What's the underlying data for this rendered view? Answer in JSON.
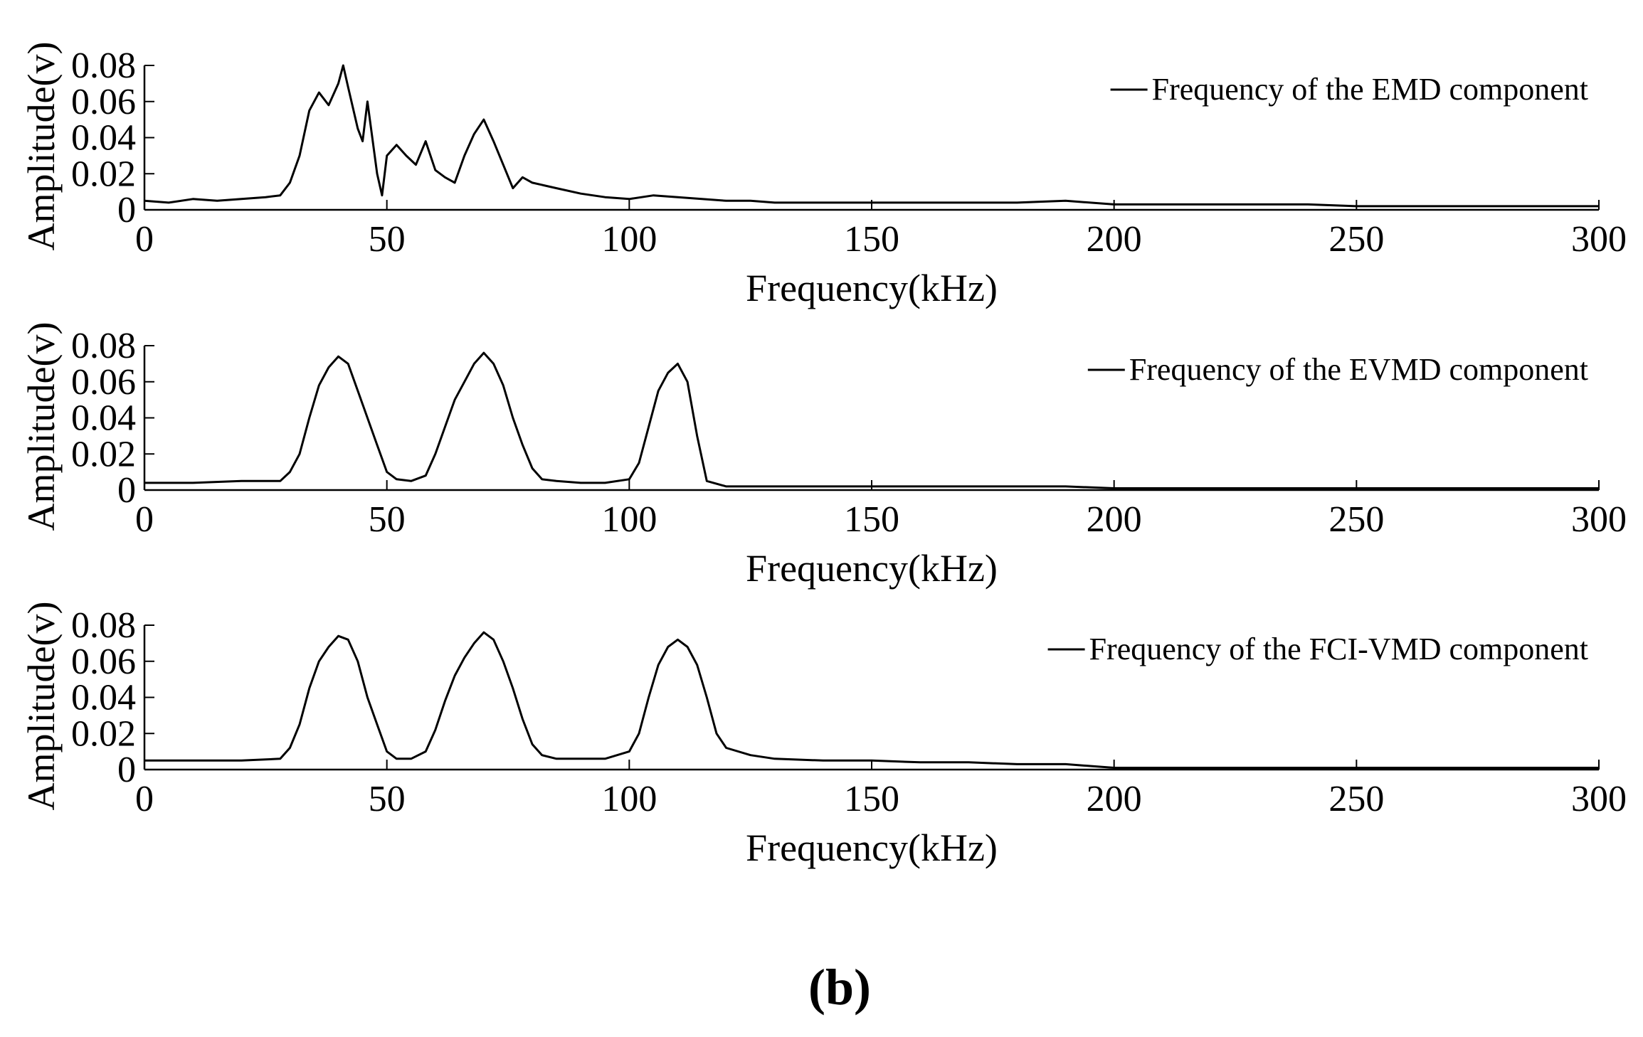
{
  "caption": "(b)",
  "chart_data": [
    {
      "type": "line",
      "xlabel": "Frequency(kHz)",
      "ylabel": "Amplitude(v)",
      "xlim": [
        0,
        300
      ],
      "ylim": [
        0,
        0.08
      ],
      "xticks": [
        "0",
        "50",
        "100",
        "150",
        "200",
        "250",
        "300"
      ],
      "yticks": [
        "0",
        "0.02",
        "0.04",
        "0.06",
        "0.08"
      ],
      "legend_position": "top-right",
      "grid": false,
      "series": [
        {
          "name": "Frequency of the EMD component",
          "color": "#000000",
          "x": [
            0,
            5,
            10,
            15,
            20,
            25,
            28,
            30,
            32,
            34,
            36,
            38,
            40,
            41,
            42,
            44,
            45,
            46,
            48,
            49,
            50,
            52,
            54,
            56,
            58,
            60,
            62,
            64,
            66,
            68,
            70,
            72,
            74,
            76,
            78,
            80,
            85,
            90,
            95,
            100,
            105,
            110,
            115,
            120,
            125,
            130,
            140,
            150,
            160,
            170,
            180,
            190,
            200,
            210,
            220,
            230,
            240,
            250,
            260,
            270,
            280,
            290,
            300
          ],
          "y": [
            0.005,
            0.004,
            0.006,
            0.005,
            0.006,
            0.007,
            0.008,
            0.015,
            0.03,
            0.055,
            0.065,
            0.058,
            0.07,
            0.08,
            0.068,
            0.045,
            0.038,
            0.06,
            0.02,
            0.008,
            0.03,
            0.036,
            0.03,
            0.025,
            0.038,
            0.022,
            0.018,
            0.015,
            0.03,
            0.042,
            0.05,
            0.038,
            0.025,
            0.012,
            0.018,
            0.015,
            0.012,
            0.009,
            0.007,
            0.006,
            0.008,
            0.007,
            0.006,
            0.005,
            0.005,
            0.004,
            0.004,
            0.004,
            0.004,
            0.004,
            0.004,
            0.005,
            0.003,
            0.003,
            0.003,
            0.003,
            0.003,
            0.002,
            0.002,
            0.002,
            0.002,
            0.002,
            0.002
          ]
        }
      ]
    },
    {
      "type": "line",
      "xlabel": "Frequency(kHz)",
      "ylabel": "Amplitude(v)",
      "xlim": [
        0,
        300
      ],
      "ylim": [
        0,
        0.08
      ],
      "xticks": [
        "0",
        "50",
        "100",
        "150",
        "200",
        "250",
        "300"
      ],
      "yticks": [
        "0",
        "0.02",
        "0.04",
        "0.06",
        "0.08"
      ],
      "legend_position": "top-right",
      "grid": false,
      "series": [
        {
          "name": "Frequency of the EVMD component",
          "color": "#000000",
          "x": [
            0,
            10,
            20,
            28,
            30,
            32,
            34,
            36,
            38,
            40,
            42,
            44,
            46,
            48,
            50,
            52,
            55,
            58,
            60,
            62,
            64,
            66,
            68,
            70,
            72,
            74,
            76,
            78,
            80,
            82,
            85,
            90,
            95,
            100,
            102,
            104,
            106,
            108,
            110,
            112,
            114,
            116,
            120,
            130,
            150,
            170,
            190,
            200,
            220,
            250,
            280,
            300
          ],
          "y": [
            0.004,
            0.004,
            0.005,
            0.005,
            0.01,
            0.02,
            0.04,
            0.058,
            0.068,
            0.074,
            0.07,
            0.055,
            0.04,
            0.025,
            0.01,
            0.006,
            0.005,
            0.008,
            0.02,
            0.035,
            0.05,
            0.06,
            0.07,
            0.076,
            0.07,
            0.058,
            0.04,
            0.025,
            0.012,
            0.006,
            0.005,
            0.004,
            0.004,
            0.006,
            0.015,
            0.035,
            0.055,
            0.065,
            0.07,
            0.06,
            0.03,
            0.005,
            0.002,
            0.002,
            0.002,
            0.002,
            0.002,
            0.001,
            0.001,
            0.001,
            0.001,
            0.001
          ]
        }
      ]
    },
    {
      "type": "line",
      "xlabel": "Frequency(kHz)",
      "ylabel": "Amplitude(v)",
      "xlim": [
        0,
        300
      ],
      "ylim": [
        0,
        0.08
      ],
      "xticks": [
        "0",
        "50",
        "100",
        "150",
        "200",
        "250",
        "300"
      ],
      "yticks": [
        "0",
        "0.02",
        "0.04",
        "0.06",
        "0.08"
      ],
      "legend_position": "top-right",
      "grid": false,
      "series": [
        {
          "name": "Frequency of the FCI-VMD component",
          "color": "#000000",
          "x": [
            0,
            10,
            20,
            28,
            30,
            32,
            34,
            36,
            38,
            40,
            42,
            44,
            46,
            48,
            50,
            52,
            55,
            58,
            60,
            62,
            64,
            66,
            68,
            70,
            72,
            74,
            76,
            78,
            80,
            82,
            85,
            90,
            95,
            100,
            102,
            104,
            106,
            108,
            110,
            112,
            114,
            116,
            118,
            120,
            125,
            130,
            140,
            150,
            160,
            170,
            180,
            190,
            200,
            220,
            250,
            280,
            300
          ],
          "y": [
            0.005,
            0.005,
            0.005,
            0.006,
            0.012,
            0.025,
            0.045,
            0.06,
            0.068,
            0.074,
            0.072,
            0.06,
            0.04,
            0.025,
            0.01,
            0.006,
            0.006,
            0.01,
            0.022,
            0.038,
            0.052,
            0.062,
            0.07,
            0.076,
            0.072,
            0.06,
            0.045,
            0.028,
            0.014,
            0.008,
            0.006,
            0.006,
            0.006,
            0.01,
            0.02,
            0.04,
            0.058,
            0.068,
            0.072,
            0.068,
            0.058,
            0.04,
            0.02,
            0.012,
            0.008,
            0.006,
            0.005,
            0.005,
            0.004,
            0.004,
            0.003,
            0.003,
            0.001,
            0.001,
            0.001,
            0.001,
            0.001
          ]
        }
      ]
    }
  ]
}
